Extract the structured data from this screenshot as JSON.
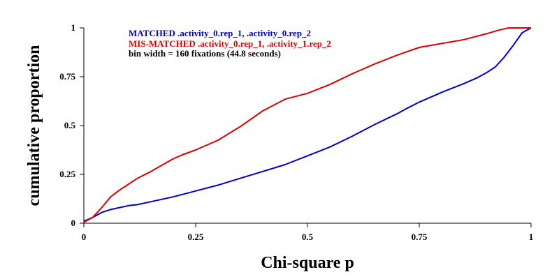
{
  "chart_data": {
    "type": "line",
    "title": "",
    "xlabel": "Chi-square p",
    "ylabel": "cumulative proportion",
    "xlim": [
      0,
      1
    ],
    "ylim": [
      0,
      1
    ],
    "xticks": [
      0,
      0.25,
      0.5,
      0.75,
      1
    ],
    "xtick_labels": [
      "0",
      "0.25",
      "0.5",
      "0.75",
      "1"
    ],
    "yticks": [
      0,
      0.25,
      0.5,
      0.75,
      1
    ],
    "ytick_labels": [
      "0",
      "0.25",
      "0.5",
      "0.75",
      "1"
    ],
    "grid": false,
    "legend_position": "top-center",
    "annotation": "bin width = 160 fixations (44.8 seconds)",
    "series": [
      {
        "name": "MATCHED .activity_0.rep_1, .activity_0.rep_2",
        "color": "#0000cc",
        "x": [
          0,
          0.02,
          0.04,
          0.06,
          0.08,
          0.1,
          0.12,
          0.15,
          0.2,
          0.25,
          0.3,
          0.35,
          0.4,
          0.45,
          0.5,
          0.55,
          0.6,
          0.65,
          0.7,
          0.72,
          0.75,
          0.8,
          0.85,
          0.88,
          0.9,
          0.92,
          0.94,
          0.96,
          0.98,
          1
        ],
        "y": [
          0.01,
          0.03,
          0.055,
          0.07,
          0.08,
          0.09,
          0.095,
          0.11,
          0.135,
          0.165,
          0.195,
          0.23,
          0.265,
          0.3,
          0.345,
          0.39,
          0.445,
          0.505,
          0.56,
          0.585,
          0.62,
          0.67,
          0.715,
          0.745,
          0.77,
          0.8,
          0.85,
          0.91,
          0.975,
          1
        ]
      },
      {
        "name": "MIS-MATCHED .activity_0.rep_1, .activity_1.rep_2",
        "color": "#dd0000",
        "x": [
          0,
          0.02,
          0.04,
          0.06,
          0.08,
          0.1,
          0.12,
          0.15,
          0.2,
          0.22,
          0.25,
          0.3,
          0.35,
          0.4,
          0.45,
          0.5,
          0.55,
          0.6,
          0.65,
          0.7,
          0.75,
          0.8,
          0.85,
          0.9,
          0.93,
          0.95,
          0.97,
          1
        ],
        "y": [
          0.005,
          0.03,
          0.08,
          0.135,
          0.17,
          0.2,
          0.23,
          0.265,
          0.33,
          0.35,
          0.375,
          0.425,
          0.495,
          0.575,
          0.635,
          0.665,
          0.71,
          0.765,
          0.815,
          0.86,
          0.9,
          0.92,
          0.94,
          0.97,
          0.99,
          1,
          1,
          1
        ]
      }
    ]
  }
}
